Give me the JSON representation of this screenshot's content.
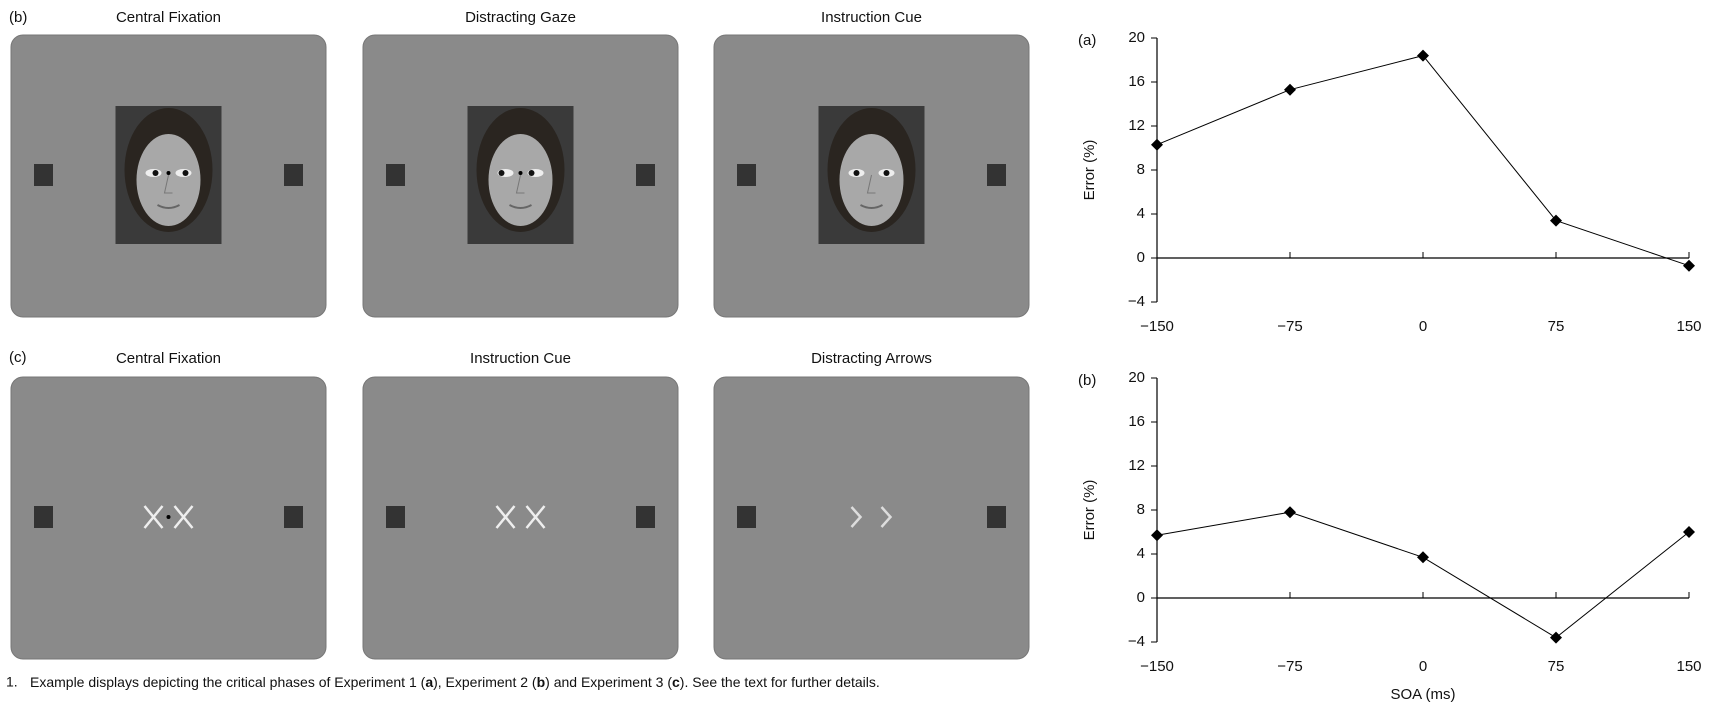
{
  "panels": [
    {
      "label": "(b)",
      "screens": [
        "Central Fixation",
        "Distracting Gaze",
        "Instruction Cue"
      ]
    },
    {
      "label": "(c)",
      "screens": [
        "Central Fixation",
        "Instruction Cue",
        "Distracting Arrows"
      ]
    }
  ],
  "caption": {
    "number": "1.",
    "parts": [
      "Example displays depicting the critical phases of Experiment 1 (",
      "a",
      "), Experiment 2 (",
      "b",
      ") and Experiment 3 (",
      "c",
      "). See the text for further details."
    ]
  },
  "chart_data": [
    {
      "type": "line",
      "panel_label": "(a)",
      "ylabel": "Error (%)",
      "x": [
        -150,
        -75,
        0,
        75,
        150
      ],
      "series": [
        {
          "color": "#000000",
          "values": [
            10.3,
            15.3,
            18.4,
            3.4,
            -0.7
          ]
        }
      ],
      "xlim": [
        -150,
        150
      ],
      "xticks": [
        {
          "value": -150,
          "label": "−150"
        },
        {
          "value": -75,
          "label": "−75"
        },
        0,
        75,
        150
      ],
      "ylim": [
        -4,
        20
      ],
      "yticks": [
        {
          "value": -4,
          "label": "−4"
        },
        0,
        4,
        8,
        12,
        16,
        20
      ]
    },
    {
      "type": "line",
      "panel_label": "(b)",
      "ylabel": "Error (%)",
      "xlabel": "SOA (ms)",
      "x": [
        -150,
        -75,
        0,
        75,
        150
      ],
      "series": [
        {
          "color": "#000000",
          "values": [
            5.7,
            7.8,
            3.7,
            -3.6,
            6.0
          ]
        }
      ],
      "xlim": [
        -150,
        150
      ],
      "xticks": [
        {
          "value": -150,
          "label": "−150"
        },
        {
          "value": -75,
          "label": "−75"
        },
        0,
        75,
        150
      ],
      "ylim": [
        -4,
        20
      ],
      "yticks": [
        {
          "value": -4,
          "label": "−4"
        },
        0,
        4,
        8,
        12,
        16,
        20
      ]
    }
  ]
}
